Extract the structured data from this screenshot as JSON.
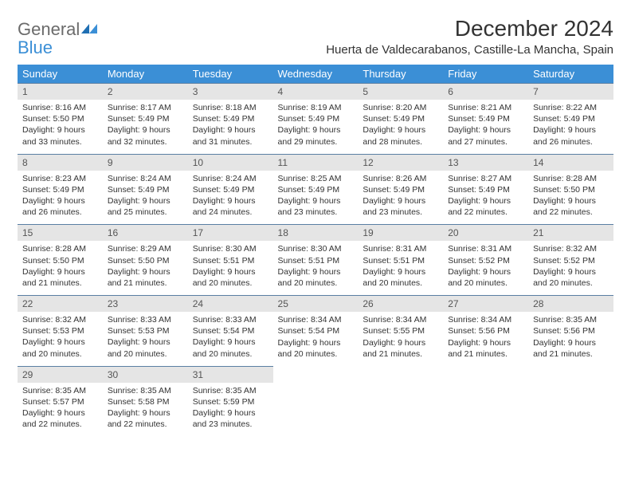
{
  "logo": {
    "general": "General",
    "blue": "Blue"
  },
  "title": "December 2024",
  "location": "Huerta de Valdecarabanos, Castille-La Mancha, Spain",
  "colors": {
    "header_bg": "#3b8fd6",
    "daynum_bg": "#e5e5e5",
    "border": "#5a7fa3",
    "text": "#333333",
    "logo_gray": "#6b6b6b",
    "logo_blue": "#3b8fd6"
  },
  "day_names": [
    "Sunday",
    "Monday",
    "Tuesday",
    "Wednesday",
    "Thursday",
    "Friday",
    "Saturday"
  ],
  "weeks": [
    [
      {
        "n": "1",
        "sr": "8:16 AM",
        "ss": "5:50 PM",
        "dl": "9 hours and 33 minutes."
      },
      {
        "n": "2",
        "sr": "8:17 AM",
        "ss": "5:49 PM",
        "dl": "9 hours and 32 minutes."
      },
      {
        "n": "3",
        "sr": "8:18 AM",
        "ss": "5:49 PM",
        "dl": "9 hours and 31 minutes."
      },
      {
        "n": "4",
        "sr": "8:19 AM",
        "ss": "5:49 PM",
        "dl": "9 hours and 29 minutes."
      },
      {
        "n": "5",
        "sr": "8:20 AM",
        "ss": "5:49 PM",
        "dl": "9 hours and 28 minutes."
      },
      {
        "n": "6",
        "sr": "8:21 AM",
        "ss": "5:49 PM",
        "dl": "9 hours and 27 minutes."
      },
      {
        "n": "7",
        "sr": "8:22 AM",
        "ss": "5:49 PM",
        "dl": "9 hours and 26 minutes."
      }
    ],
    [
      {
        "n": "8",
        "sr": "8:23 AM",
        "ss": "5:49 PM",
        "dl": "9 hours and 26 minutes."
      },
      {
        "n": "9",
        "sr": "8:24 AM",
        "ss": "5:49 PM",
        "dl": "9 hours and 25 minutes."
      },
      {
        "n": "10",
        "sr": "8:24 AM",
        "ss": "5:49 PM",
        "dl": "9 hours and 24 minutes."
      },
      {
        "n": "11",
        "sr": "8:25 AM",
        "ss": "5:49 PM",
        "dl": "9 hours and 23 minutes."
      },
      {
        "n": "12",
        "sr": "8:26 AM",
        "ss": "5:49 PM",
        "dl": "9 hours and 23 minutes."
      },
      {
        "n": "13",
        "sr": "8:27 AM",
        "ss": "5:49 PM",
        "dl": "9 hours and 22 minutes."
      },
      {
        "n": "14",
        "sr": "8:28 AM",
        "ss": "5:50 PM",
        "dl": "9 hours and 22 minutes."
      }
    ],
    [
      {
        "n": "15",
        "sr": "8:28 AM",
        "ss": "5:50 PM",
        "dl": "9 hours and 21 minutes."
      },
      {
        "n": "16",
        "sr": "8:29 AM",
        "ss": "5:50 PM",
        "dl": "9 hours and 21 minutes."
      },
      {
        "n": "17",
        "sr": "8:30 AM",
        "ss": "5:51 PM",
        "dl": "9 hours and 20 minutes."
      },
      {
        "n": "18",
        "sr": "8:30 AM",
        "ss": "5:51 PM",
        "dl": "9 hours and 20 minutes."
      },
      {
        "n": "19",
        "sr": "8:31 AM",
        "ss": "5:51 PM",
        "dl": "9 hours and 20 minutes."
      },
      {
        "n": "20",
        "sr": "8:31 AM",
        "ss": "5:52 PM",
        "dl": "9 hours and 20 minutes."
      },
      {
        "n": "21",
        "sr": "8:32 AM",
        "ss": "5:52 PM",
        "dl": "9 hours and 20 minutes."
      }
    ],
    [
      {
        "n": "22",
        "sr": "8:32 AM",
        "ss": "5:53 PM",
        "dl": "9 hours and 20 minutes."
      },
      {
        "n": "23",
        "sr": "8:33 AM",
        "ss": "5:53 PM",
        "dl": "9 hours and 20 minutes."
      },
      {
        "n": "24",
        "sr": "8:33 AM",
        "ss": "5:54 PM",
        "dl": "9 hours and 20 minutes."
      },
      {
        "n": "25",
        "sr": "8:34 AM",
        "ss": "5:54 PM",
        "dl": "9 hours and 20 minutes."
      },
      {
        "n": "26",
        "sr": "8:34 AM",
        "ss": "5:55 PM",
        "dl": "9 hours and 21 minutes."
      },
      {
        "n": "27",
        "sr": "8:34 AM",
        "ss": "5:56 PM",
        "dl": "9 hours and 21 minutes."
      },
      {
        "n": "28",
        "sr": "8:35 AM",
        "ss": "5:56 PM",
        "dl": "9 hours and 21 minutes."
      }
    ],
    [
      {
        "n": "29",
        "sr": "8:35 AM",
        "ss": "5:57 PM",
        "dl": "9 hours and 22 minutes."
      },
      {
        "n": "30",
        "sr": "8:35 AM",
        "ss": "5:58 PM",
        "dl": "9 hours and 22 minutes."
      },
      {
        "n": "31",
        "sr": "8:35 AM",
        "ss": "5:59 PM",
        "dl": "9 hours and 23 minutes."
      },
      null,
      null,
      null,
      null
    ]
  ],
  "labels": {
    "sunrise": "Sunrise: ",
    "sunset": "Sunset: ",
    "daylight": "Daylight: "
  }
}
